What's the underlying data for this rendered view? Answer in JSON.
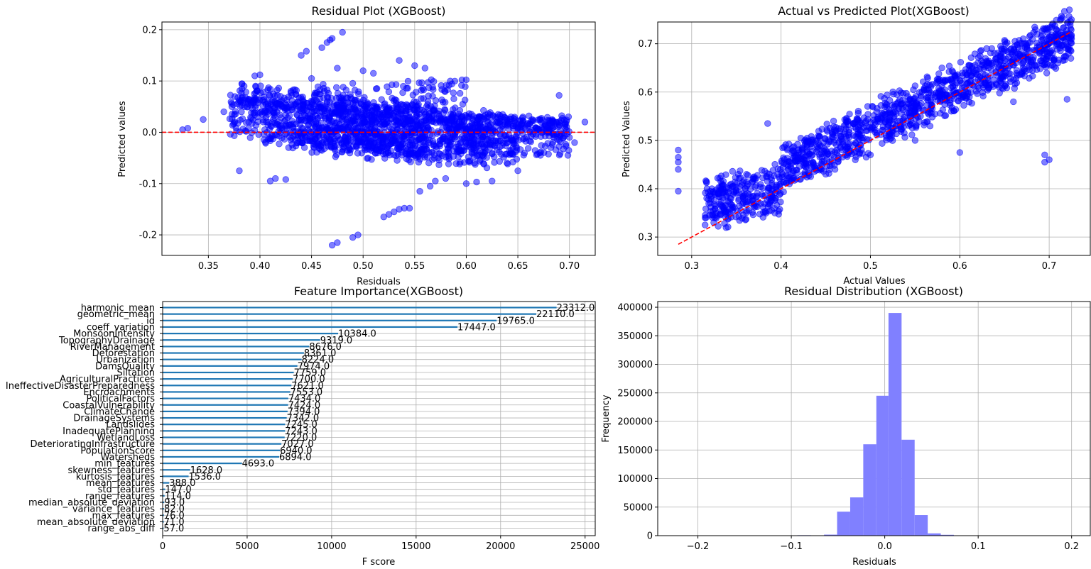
{
  "chart_data": [
    {
      "id": "residual",
      "type": "scatter",
      "title": "Residual Plot (XGBoost)",
      "xlabel": "Residuals",
      "ylabel": "Predicted values",
      "xlim": [
        0.305,
        0.725
      ],
      "ylim": [
        -0.24,
        0.215
      ],
      "xticks": [
        0.35,
        0.4,
        0.45,
        0.5,
        0.55,
        0.6,
        0.65,
        0.7
      ],
      "yticks": [
        -0.2,
        -0.1,
        0.0,
        0.1,
        0.2
      ],
      "reference_line": {
        "y": 0.0,
        "color": "#ff0000",
        "style": "dashed"
      },
      "point_color": "#0000ff",
      "grid": true,
      "outliers": [
        [
          0.325,
          0.005
        ],
        [
          0.33,
          0.008
        ],
        [
          0.345,
          0.025
        ],
        [
          0.38,
          -0.075
        ],
        [
          0.395,
          0.11
        ],
        [
          0.4,
          0.112
        ],
        [
          0.41,
          -0.095
        ],
        [
          0.415,
          -0.09
        ],
        [
          0.425,
          -0.092
        ],
        [
          0.43,
          0.08
        ],
        [
          0.44,
          0.15
        ],
        [
          0.445,
          0.158
        ],
        [
          0.45,
          0.105
        ],
        [
          0.46,
          0.165
        ],
        [
          0.465,
          0.175
        ],
        [
          0.468,
          0.18
        ],
        [
          0.47,
          0.183
        ],
        [
          0.475,
          0.125
        ],
        [
          0.48,
          0.195
        ],
        [
          0.47,
          -0.22
        ],
        [
          0.475,
          -0.215
        ],
        [
          0.49,
          -0.205
        ],
        [
          0.495,
          -0.2
        ],
        [
          0.52,
          -0.165
        ],
        [
          0.525,
          -0.16
        ],
        [
          0.53,
          -0.155
        ],
        [
          0.535,
          -0.15
        ],
        [
          0.54,
          -0.148
        ],
        [
          0.545,
          -0.148
        ],
        [
          0.535,
          0.14
        ],
        [
          0.555,
          -0.115
        ],
        [
          0.565,
          -0.105
        ],
        [
          0.57,
          -0.095
        ],
        [
          0.58,
          -0.09
        ],
        [
          0.6,
          -0.1
        ],
        [
          0.61,
          -0.097
        ],
        [
          0.625,
          -0.095
        ],
        [
          0.65,
          -0.075
        ],
        [
          0.69,
          0.072
        ],
        [
          0.7,
          -0.01
        ],
        [
          0.705,
          -0.02
        ],
        [
          0.715,
          0.02
        ],
        [
          0.69,
          -0.015
        ],
        [
          0.5,
          0.12
        ],
        [
          0.51,
          0.115
        ],
        [
          0.55,
          0.13
        ],
        [
          0.56,
          0.125
        ],
        [
          0.42,
          0.07
        ],
        [
          0.385,
          0.05
        ],
        [
          0.365,
          0.04
        ]
      ],
      "clusters": [
        {
          "x": [
            0.37,
            0.56
          ],
          "y0": -0.03,
          "y1": 0.05,
          "slope": -0.25,
          "n": 400
        },
        {
          "x": [
            0.38,
            0.7
          ],
          "y0": 0.02,
          "y1": 0.06,
          "slope": -0.22,
          "n": 400
        },
        {
          "x": [
            0.4,
            0.65
          ],
          "y0": -0.045,
          "y1": 0.045,
          "slope": -0.15,
          "n": 400
        },
        {
          "x": [
            0.45,
            0.6
          ],
          "y0": -0.02,
          "y1": 0.1,
          "slope": 0.1,
          "n": 250
        },
        {
          "x": [
            0.45,
            0.62
          ],
          "y0": -0.06,
          "y1": 0.02,
          "slope": -0.12,
          "n": 250
        },
        {
          "x": [
            0.58,
            0.7
          ],
          "y0": -0.045,
          "y1": 0.035,
          "slope": -0.05,
          "n": 250
        }
      ]
    },
    {
      "id": "actual_vs_predicted",
      "type": "scatter",
      "title": "Actual vs Predicted Plot(XGBoost)",
      "xlabel": "Actual Values",
      "ylabel": "Predicted Values",
      "xlim": [
        0.262,
        0.746
      ],
      "ylim": [
        0.262,
        0.745
      ],
      "xticks": [
        0.3,
        0.4,
        0.5,
        0.6,
        0.7
      ],
      "yticks": [
        0.3,
        0.4,
        0.5,
        0.6,
        0.7
      ],
      "reference_line": {
        "from": [
          0.285,
          0.285
        ],
        "to": [
          0.725,
          0.725
        ],
        "color": "#ff0000",
        "style": "dashed"
      },
      "point_color": "#0000ff",
      "grid": true,
      "outliers": [
        [
          0.285,
          0.395
        ],
        [
          0.285,
          0.44
        ],
        [
          0.285,
          0.465
        ],
        [
          0.285,
          0.48
        ],
        [
          0.285,
          0.455
        ],
        [
          0.315,
          0.325
        ],
        [
          0.385,
          0.535
        ],
        [
          0.38,
          0.385
        ],
        [
          0.44,
          0.5
        ],
        [
          0.45,
          0.43
        ],
        [
          0.5,
          0.47
        ],
        [
          0.63,
          0.69
        ],
        [
          0.66,
          0.58
        ],
        [
          0.695,
          0.455
        ],
        [
          0.695,
          0.47
        ],
        [
          0.7,
          0.46
        ],
        [
          0.72,
          0.585
        ],
        [
          0.725,
          0.71
        ],
        [
          0.6,
          0.475
        ],
        [
          0.58,
          0.65
        ],
        [
          0.55,
          0.5
        ]
      ],
      "band": {
        "x": [
          0.315,
          0.725
        ],
        "slope": 0.85,
        "intercept": 0.1,
        "spread": 0.05,
        "n": 1400
      }
    },
    {
      "id": "feature_importance",
      "type": "bar",
      "orientation": "horizontal",
      "title": "Feature Importance(XGBoost)",
      "xlabel": "F score",
      "ylabel": "",
      "xlim": [
        0,
        25600
      ],
      "xticks": [
        0,
        5000,
        10000,
        15000,
        20000,
        25000
      ],
      "bar_color": "#1f77b4",
      "grid": true,
      "categories": [
        "harmonic_mean",
        "geometric_mean",
        "id",
        "coeff_variation",
        "MonsoonIntensity",
        "TopographyDrainage",
        "RiverManagement",
        "Deforestation",
        "Urbanization",
        "DamsQuality",
        "Siltation",
        "AgriculturalPractices",
        "IneffectiveDisasterPreparedness",
        "Encroachments",
        "PoliticalFactors",
        "CoastalVulnerability",
        "ClimateChange",
        "DrainageSystems",
        "Landslides",
        "InadequatePlanning",
        "WetlandLoss",
        "DeterioratingInfrastructure",
        "PopulationScore",
        "Watersheds",
        "min_features",
        "skewness_features",
        "kurtosis_features",
        "mean_features",
        "std_features",
        "range_features",
        "median_absolute_deviation",
        "variance_features",
        "max_features",
        "mean_absolute_deviation",
        "range_abs_diff"
      ],
      "values": [
        23312.0,
        22110.0,
        19765.0,
        17447.0,
        10384.0,
        9319.0,
        8676.0,
        8361.0,
        8224.0,
        7974.0,
        7759.0,
        7700.0,
        7621.0,
        7553.0,
        7434.0,
        7424.0,
        7394.0,
        7342.0,
        7245.0,
        7243.0,
        7220.0,
        7027.0,
        6940.0,
        6894.0,
        4693.0,
        1628.0,
        1536.0,
        388.0,
        147.0,
        114.0,
        93.0,
        82.0,
        76.0,
        71.0,
        57.0
      ],
      "labels": [
        "23312.0",
        "22110.0",
        "19765.0",
        "17447.0",
        "10384.0",
        "9319.0",
        "8676.0",
        "8361.0",
        "8224.0",
        "7974.0",
        "7759.0",
        "7700.0",
        "7621.0",
        "7553.0",
        "7434.0",
        "7424.0",
        "7394.0",
        "7342.0",
        "7245.0",
        "7243.0",
        "7220.0",
        "7027.0",
        "6940.0",
        "6894.0",
        "4693.0",
        "1628.0",
        "1536.0",
        "388.0",
        "147.0",
        "114.0",
        "93.0",
        "82.0",
        "76.0",
        "71.0",
        "57.0"
      ]
    },
    {
      "id": "residual_distribution",
      "type": "histogram",
      "title": "Residual Distribution (XGBoost)",
      "xlabel": "Residuals",
      "ylabel": "Frequency",
      "xlim": [
        -0.243,
        0.22
      ],
      "ylim": [
        0,
        410000
      ],
      "xticks": [
        -0.2,
        -0.1,
        0.0,
        0.1,
        0.2
      ],
      "yticks": [
        0,
        50000,
        100000,
        150000,
        200000,
        250000,
        300000,
        350000,
        400000
      ],
      "bar_color": "#8080ff",
      "grid": true,
      "bins": [
        {
          "x0": -0.0935,
          "x1": -0.079,
          "count": 800
        },
        {
          "x0": -0.079,
          "x1": -0.065,
          "count": 300
        },
        {
          "x0": -0.065,
          "x1": -0.051,
          "count": 1800
        },
        {
          "x0": -0.051,
          "x1": -0.037,
          "count": 42000
        },
        {
          "x0": -0.037,
          "x1": -0.023,
          "count": 67000
        },
        {
          "x0": -0.023,
          "x1": -0.009,
          "count": 160000
        },
        {
          "x0": -0.009,
          "x1": 0.004,
          "count": 245000
        },
        {
          "x0": 0.004,
          "x1": 0.018,
          "count": 390000
        },
        {
          "x0": 0.018,
          "x1": 0.032,
          "count": 168000
        },
        {
          "x0": 0.032,
          "x1": 0.046,
          "count": 36000
        },
        {
          "x0": 0.046,
          "x1": 0.06,
          "count": 4000
        },
        {
          "x0": 0.06,
          "x1": 0.074,
          "count": 1500
        }
      ]
    }
  ]
}
